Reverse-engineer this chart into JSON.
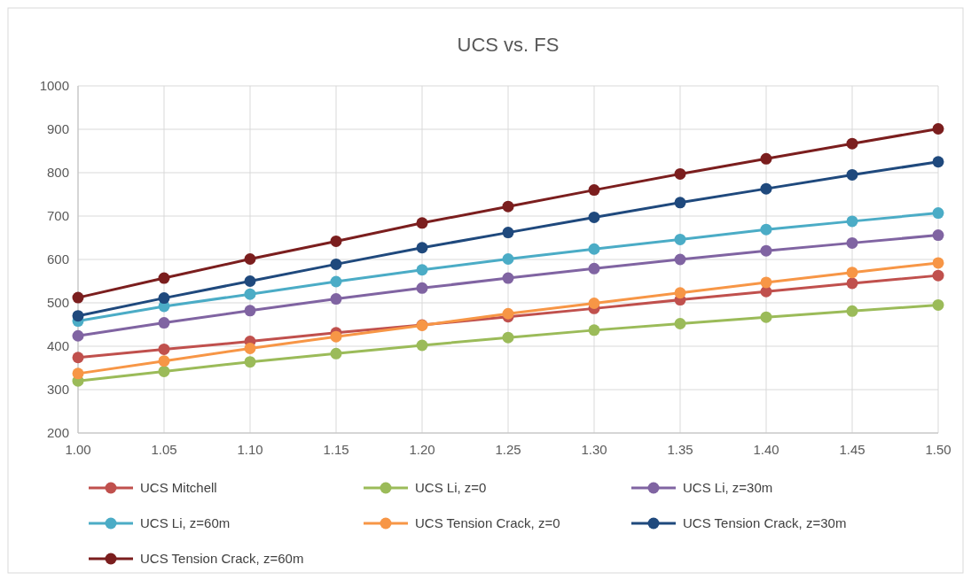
{
  "chart_data": {
    "type": "line",
    "title": "UCS vs. FS",
    "x": [
      1.0,
      1.05,
      1.1,
      1.15,
      1.2,
      1.25,
      1.3,
      1.35,
      1.4,
      1.45,
      1.5
    ],
    "xlim": [
      1.0,
      1.5
    ],
    "xticks": [
      {
        "value": 1.0,
        "label": "1.00"
      },
      {
        "value": 1.05,
        "label": "1.05"
      },
      {
        "value": 1.1,
        "label": "1.10"
      },
      {
        "value": 1.15,
        "label": "1.15"
      },
      {
        "value": 1.2,
        "label": "1.20"
      },
      {
        "value": 1.25,
        "label": "1.25"
      },
      {
        "value": 1.3,
        "label": "1.30"
      },
      {
        "value": 1.35,
        "label": "1.35"
      },
      {
        "value": 1.4,
        "label": "1.40"
      },
      {
        "value": 1.45,
        "label": "1.45"
      },
      {
        "value": 1.5,
        "label": "1.50"
      }
    ],
    "ylim": [
      200,
      1000
    ],
    "yticks": [
      200,
      300,
      400,
      500,
      600,
      700,
      800,
      900,
      1000
    ],
    "grid": true,
    "legend": "bottom",
    "marker": "circle",
    "line_style": "solid",
    "series": [
      {
        "name": "UCS Mitchell",
        "color": "#c0504d",
        "values": [
          374,
          393,
          411,
          431,
          449,
          468,
          487,
          507,
          526,
          545,
          563
        ]
      },
      {
        "name": "UCS Li, z=0",
        "color": "#9bbb59",
        "values": [
          320,
          342,
          364,
          383,
          402,
          420,
          437,
          452,
          467,
          481,
          495
        ]
      },
      {
        "name": "UCS Li, z=30m",
        "color": "#8064a2",
        "values": [
          424,
          454,
          482,
          509,
          534,
          557,
          579,
          600,
          620,
          638,
          656
        ]
      },
      {
        "name": "UCS Li, z=60m",
        "color": "#4bacc6",
        "values": [
          458,
          492,
          520,
          549,
          576,
          601,
          624,
          646,
          669,
          688,
          707
        ]
      },
      {
        "name": "UCS Tension Crack, z=0",
        "color": "#f79646",
        "values": [
          337,
          366,
          395,
          422,
          448,
          475,
          499,
          523,
          547,
          570,
          592
        ]
      },
      {
        "name": "UCS Tension Crack, z=30m",
        "color": "#1f497d",
        "values": [
          470,
          511,
          550,
          589,
          627,
          662,
          697,
          731,
          763,
          795,
          825
        ]
      },
      {
        "name": "UCS Tension Crack, z=60m",
        "color": "#7b1e1e",
        "values": [
          512,
          557,
          601,
          642,
          684,
          722,
          760,
          797,
          832,
          867,
          901
        ]
      }
    ]
  }
}
